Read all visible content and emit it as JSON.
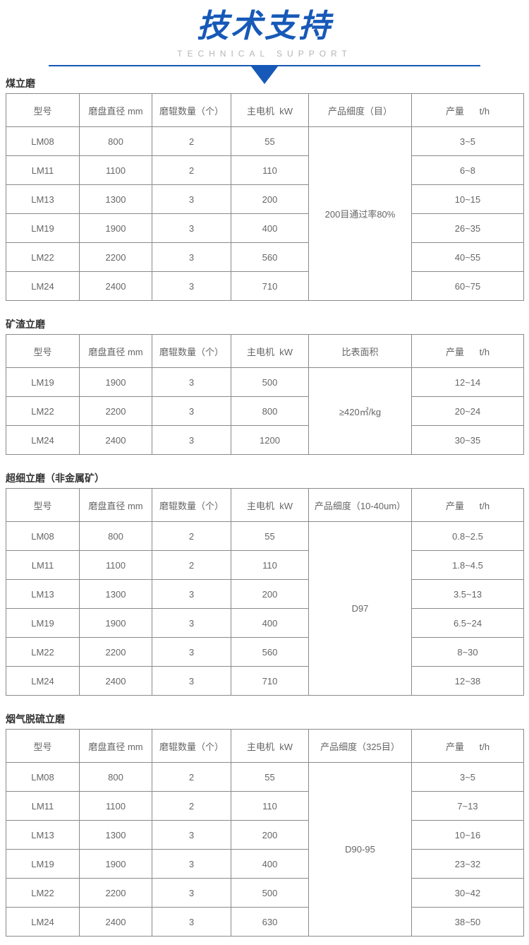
{
  "header": {
    "title": "技术支持",
    "subtitle": "TECHNICAL SUPPORT",
    "accent_color": "#1659b8"
  },
  "tables": [
    {
      "title": "煤立磨",
      "columns": [
        "型号",
        "磨盘直径 mm",
        "磨辊数量（个）",
        "主电机  kW",
        "产品细度（目）",
        "产量      t/h"
      ],
      "merged": "200目通过率80%",
      "rows": [
        [
          "LM08",
          "800",
          "2",
          "55",
          "3~5"
        ],
        [
          "LM11",
          "1100",
          "2",
          "110",
          "6~8"
        ],
        [
          "LM13",
          "1300",
          "3",
          "200",
          "10~15"
        ],
        [
          "LM19",
          "1900",
          "3",
          "400",
          "26~35"
        ],
        [
          "LM22",
          "2200",
          "3",
          "560",
          "40~55"
        ],
        [
          "LM24",
          "2400",
          "3",
          "710",
          "60~75"
        ]
      ]
    },
    {
      "title": "矿渣立磨",
      "columns": [
        "型号",
        "磨盘直径 mm",
        "磨辊数量（个）",
        "主电机  kW",
        "比表面积",
        "产量      t/h"
      ],
      "merged": "≥420㎡/kg",
      "rows": [
        [
          "LM19",
          "1900",
          "3",
          "500",
          "12~14"
        ],
        [
          "LM22",
          "2200",
          "3",
          "800",
          "20~24"
        ],
        [
          "LM24",
          "2400",
          "3",
          "1200",
          "30~35"
        ]
      ]
    },
    {
      "title": "超细立磨（非金属矿）",
      "columns": [
        "型号",
        "磨盘直径 mm",
        "磨辊数量（个）",
        "主电机  kW",
        "产品细度（10-40um）",
        "产量      t/h"
      ],
      "merged": "D97",
      "rows": [
        [
          "LM08",
          "800",
          "2",
          "55",
          "0.8~2.5"
        ],
        [
          "LM11",
          "1100",
          "2",
          "110",
          "1.8~4.5"
        ],
        [
          "LM13",
          "1300",
          "3",
          "200",
          "3.5~13"
        ],
        [
          "LM19",
          "1900",
          "3",
          "400",
          "6.5~24"
        ],
        [
          "LM22",
          "2200",
          "3",
          "560",
          "8~30"
        ],
        [
          "LM24",
          "2400",
          "3",
          "710",
          "12~38"
        ]
      ]
    },
    {
      "title": "烟气脱硫立磨",
      "columns": [
        "型号",
        "磨盘直径 mm",
        "磨辊数量（个）",
        "主电机  kW",
        "产品细度（325目）",
        "产量      t/h"
      ],
      "merged": "D90-95",
      "rows": [
        [
          "LM08",
          "800",
          "2",
          "55",
          "3~5"
        ],
        [
          "LM11",
          "1100",
          "2",
          "110",
          "7~13"
        ],
        [
          "LM13",
          "1300",
          "3",
          "200",
          "10~16"
        ],
        [
          "LM19",
          "1900",
          "3",
          "400",
          "23~32"
        ],
        [
          "LM22",
          "2200",
          "3",
          "500",
          "30~42"
        ],
        [
          "LM24",
          "2400",
          "3",
          "630",
          "38~50"
        ]
      ]
    }
  ]
}
